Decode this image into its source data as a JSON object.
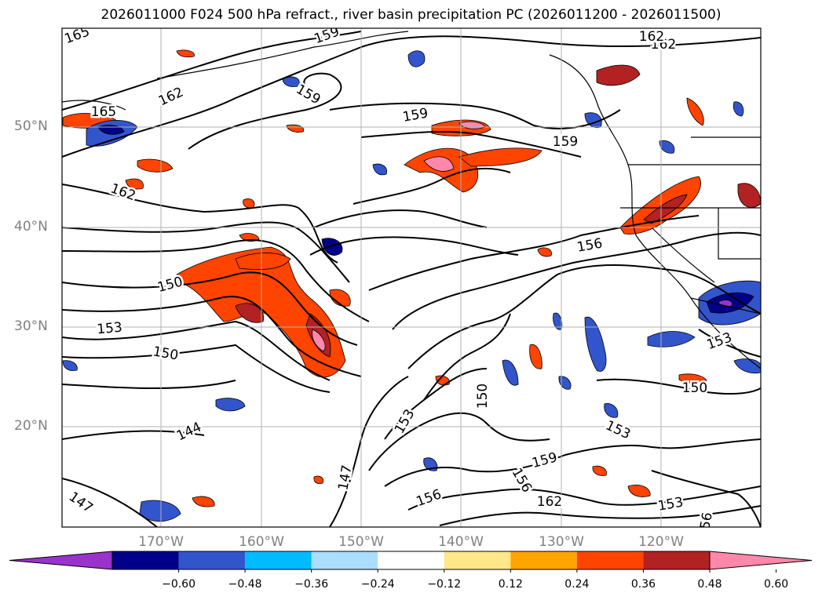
{
  "title": "2026011000 F024 500 hPa refract., river basin precipitation PC (2026011200 - 2026011500)",
  "lat_labels": [
    "50°N",
    "40°N",
    "30°N",
    "20°N"
  ],
  "lon_labels": [
    "170°W",
    "160°W",
    "150°W",
    "140°W",
    "130°W",
    "120°W"
  ],
  "colorbar": {
    "ticks": [
      "−0.60",
      "−0.48",
      "−0.36",
      "−0.24",
      "−0.12",
      "0.12",
      "0.24",
      "0.36",
      "0.48",
      "0.60"
    ],
    "colors": [
      "#9933cc",
      "#000088",
      "#3355cc",
      "#00bbff",
      "#aaddff",
      "#ffffff",
      "#ffe88a",
      "#ffa500",
      "#ff4400",
      "#b22222",
      "#ff88aa"
    ]
  },
  "contour_labels": [
    "165",
    "165",
    "162",
    "162",
    "162",
    "159",
    "159",
    "159",
    "159",
    "159",
    "156",
    "156",
    "156",
    "153",
    "153",
    "153",
    "153",
    "153",
    "150",
    "150",
    "150",
    "150",
    "147",
    "147",
    "144",
    "162",
    "162",
    "56"
  ]
}
